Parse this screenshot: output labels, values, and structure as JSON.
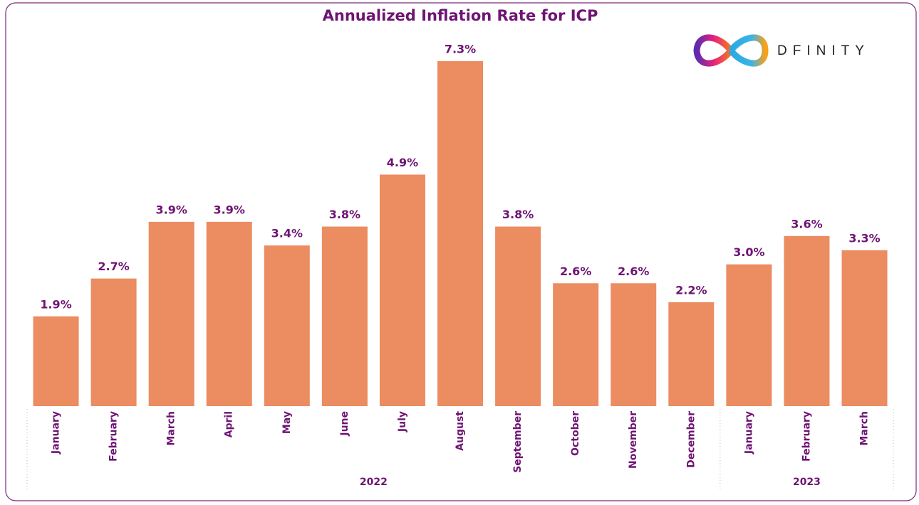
{
  "chart_data": {
    "type": "bar",
    "title": "Annualized Inflation Rate for ICP",
    "logo": "DFINITY",
    "color": "#eb8c61",
    "groups": [
      {
        "name": "2022",
        "categories": [
          "January",
          "February",
          "March",
          "April",
          "May",
          "June",
          "July",
          "August",
          "September",
          "October",
          "November",
          "December"
        ],
        "values": [
          1.9,
          2.7,
          3.9,
          3.9,
          3.4,
          3.8,
          4.9,
          7.3,
          3.8,
          2.6,
          2.6,
          2.2
        ],
        "value_labels": [
          "1.9%",
          "2.7%",
          "3.9%",
          "3.9%",
          "3.4%",
          "3.8%",
          "4.9%",
          "7.3%",
          "3.8%",
          "2.6%",
          "2.6%",
          "2.2%"
        ]
      },
      {
        "name": "2023",
        "categories": [
          "January",
          "February",
          "March"
        ],
        "values": [
          3.0,
          3.6,
          3.3
        ],
        "value_labels": [
          "3.0%",
          "3.6%",
          "3.3%"
        ]
      }
    ]
  }
}
